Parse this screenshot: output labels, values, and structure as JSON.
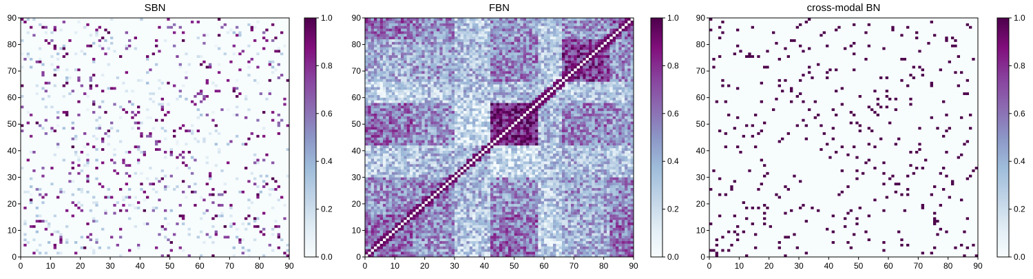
{
  "chart_data": [
    {
      "type": "heatmap",
      "title": "SBN",
      "x_range": [
        0,
        90
      ],
      "y_range": [
        0,
        90
      ],
      "xticks": [
        "0",
        "10",
        "20",
        "30",
        "40",
        "50",
        "60",
        "70",
        "80",
        "90"
      ],
      "yticks": [
        "0",
        "10",
        "20",
        "30",
        "40",
        "50",
        "60",
        "70",
        "80",
        "90"
      ],
      "colorbar": {
        "range": [
          0,
          1
        ],
        "ticks": [
          "0.0",
          "0.2",
          "0.4",
          "0.6",
          "0.8",
          "1.0"
        ]
      },
      "colormap": "BuPu",
      "matrix_size": 90,
      "pattern": "sparse symmetric structural connectivity, mostly near 0 with scattered values near 1 along diagonal bands"
    },
    {
      "type": "heatmap",
      "title": "FBN",
      "x_range": [
        0,
        90
      ],
      "y_range": [
        0,
        90
      ],
      "xticks": [
        "0",
        "10",
        "20",
        "30",
        "40",
        "50",
        "60",
        "70",
        "80",
        "90"
      ],
      "yticks": [
        "0",
        "10",
        "20",
        "30",
        "40",
        "50",
        "60",
        "70",
        "80",
        "90"
      ],
      "colorbar": {
        "range": [
          0,
          1
        ],
        "ticks": [
          "0.0",
          "0.2",
          "0.4",
          "0.6",
          "0.8",
          "1.0"
        ]
      },
      "colormap": "BuPu",
      "matrix_size": 90,
      "pattern": "dense symmetric functional connectivity with strong block from 42-58 and 66-82, white diagonal"
    },
    {
      "type": "heatmap",
      "title": "cross-modal BN",
      "x_range": [
        0,
        90
      ],
      "y_range": [
        0,
        90
      ],
      "xticks": [
        "0",
        "10",
        "20",
        "30",
        "40",
        "50",
        "60",
        "70",
        "80",
        "90"
      ],
      "yticks": [
        "0",
        "10",
        "20",
        "30",
        "40",
        "50",
        "60",
        "70",
        "80",
        "90"
      ],
      "colorbar": {
        "range": [
          0,
          1
        ],
        "ticks": [
          "0.0",
          "0.2",
          "0.4",
          "0.6",
          "0.8",
          "1.0"
        ]
      },
      "colormap": "BuPu",
      "matrix_size": 90,
      "pattern": "very sparse symmetric binary-like connectivity"
    }
  ],
  "colors": {
    "low": "#f7fcfd",
    "mid": "#8c96c6",
    "high": "#4d004b"
  }
}
